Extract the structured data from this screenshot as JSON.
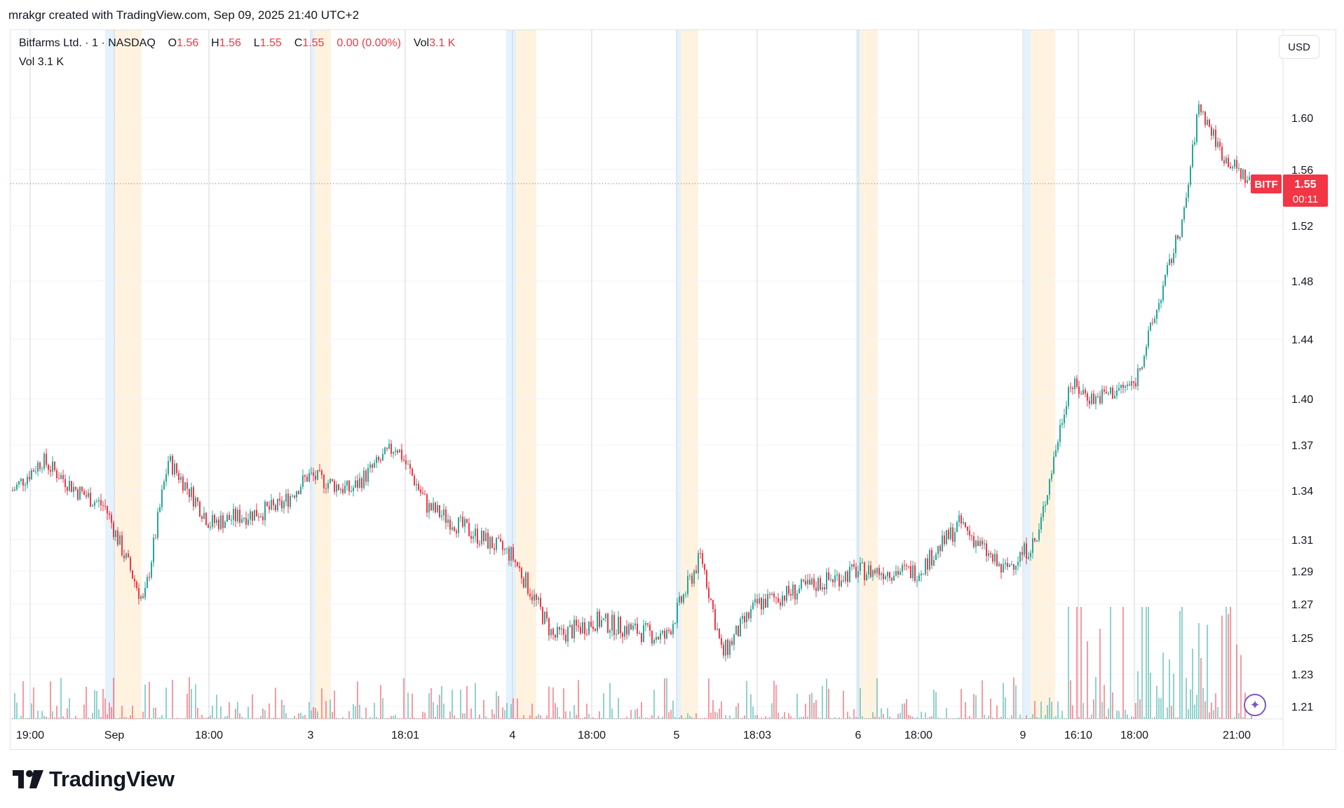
{
  "caption": "mrakgr created with TradingView.com, Sep 09, 2025 21:40 UTC+2",
  "legend": {
    "name": "Bitfarms Ltd.",
    "dot": "·",
    "interval": "1",
    "exchange": "NASDAQ",
    "o_label": "O",
    "o_value": "1.56",
    "h_label": "H",
    "h_value": "1.56",
    "l_label": "L",
    "l_value": "1.55",
    "c_label": "C",
    "c_value": "1.55",
    "change": "0.00 (0.00%)",
    "vol_label": "Vol",
    "vol_value": "3.1 K"
  },
  "volume_legend": {
    "label": "Vol",
    "value": "3.1 K"
  },
  "currency_button": "USD",
  "price_tag": {
    "symbol": "BITF",
    "price": "1.55",
    "countdown": "00:11"
  },
  "brand": {
    "name": "TradingView"
  },
  "icons": {
    "logo": "tradingview-logo-icon",
    "lightning": "lightning-icon"
  },
  "colors": {
    "up": "#26a69a",
    "down": "#f23645",
    "grid": "#f0f3fa",
    "session_line": "#d1d4dc",
    "premarket": "#e3f2fd",
    "afterhours": "#fff3e0",
    "price_line": "#f23645"
  },
  "chart_data": {
    "type": "candlestick",
    "title": "",
    "interval": "1",
    "y_axis": {
      "ticks": [
        1.21,
        1.23,
        1.25,
        1.27,
        1.29,
        1.31,
        1.34,
        1.37,
        1.4,
        1.44,
        1.48,
        1.52,
        1.56,
        1.6
      ],
      "range": [
        1.21,
        1.62
      ]
    },
    "x_axis": {
      "ticks": [
        "19:00",
        "Sep",
        "18:00",
        "3",
        "18:01",
        "4",
        "18:00",
        "5",
        "18:03",
        "6",
        "18:00",
        "9",
        "16:10",
        "18:00",
        "21:00"
      ]
    },
    "current_price": 1.55,
    "close_series": [
      {
        "t": "Aug 29 19:00",
        "close": 1.34
      },
      {
        "t": "Aug 29 20:00",
        "close": 1.36
      },
      {
        "t": "Aug 29 21:00",
        "close": 1.34
      },
      {
        "t": "Sep 2 pre",
        "close": 1.33
      },
      {
        "t": "Sep 2 09:30",
        "close": 1.27
      },
      {
        "t": "Sep 2 12:00",
        "close": 1.36
      },
      {
        "t": "Sep 2 18:00",
        "close": 1.32
      },
      {
        "t": "Sep 2 21:00",
        "close": 1.33
      },
      {
        "t": "Sep 3 09:30",
        "close": 1.35
      },
      {
        "t": "Sep 3 12:00",
        "close": 1.34
      },
      {
        "t": "Sep 3 18:01",
        "close": 1.37
      },
      {
        "t": "Sep 3 21:00",
        "close": 1.33
      },
      {
        "t": "Sep 4 09:30",
        "close": 1.3
      },
      {
        "t": "Sep 4 12:00",
        "close": 1.25
      },
      {
        "t": "Sep 4 18:00",
        "close": 1.26
      },
      {
        "t": "Sep 4 21:00",
        "close": 1.25
      },
      {
        "t": "Sep 5 09:30",
        "close": 1.3
      },
      {
        "t": "Sep 5 12:00",
        "close": 1.24
      },
      {
        "t": "Sep 5 18:03",
        "close": 1.27
      },
      {
        "t": "Sep 5 21:00",
        "close": 1.29
      },
      {
        "t": "Sep 8 12:00",
        "close": 1.29
      },
      {
        "t": "Sep 8 18:00",
        "close": 1.29
      },
      {
        "t": "Sep 8 20:00",
        "close": 1.32
      },
      {
        "t": "Sep 8 21:00",
        "close": 1.29
      },
      {
        "t": "Sep 9 pre",
        "close": 1.31
      },
      {
        "t": "Sep 9 16:10",
        "close": 1.41
      },
      {
        "t": "Sep 9 17:00",
        "close": 1.4
      },
      {
        "t": "Sep 9 18:00",
        "close": 1.41
      },
      {
        "t": "Sep 9 19:00",
        "close": 1.46
      },
      {
        "t": "Sep 9 19:45",
        "close": 1.53
      },
      {
        "t": "Sep 9 20:30",
        "close": 1.61
      },
      {
        "t": "Sep 9 21:00",
        "close": 1.57
      },
      {
        "t": "Sep 9 21:40",
        "close": 1.55
      }
    ]
  }
}
